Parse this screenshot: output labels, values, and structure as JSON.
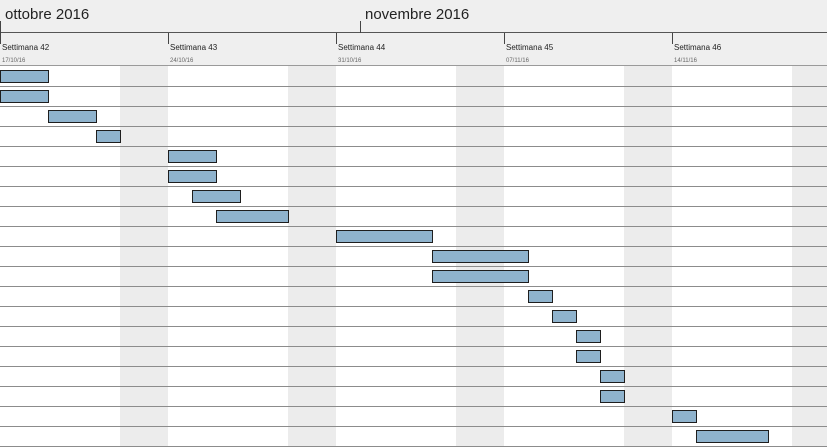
{
  "months": [
    {
      "label": "ottobre 2016",
      "start_day": 0
    },
    {
      "label": "novembre 2016",
      "start_day": 15
    }
  ],
  "weeks": [
    {
      "label": "Settimana 42",
      "date": "17/10/16",
      "start_day": 0
    },
    {
      "label": "Settimana 43",
      "date": "24/10/16",
      "start_day": 7
    },
    {
      "label": "Settimana 44",
      "date": "31/10/16",
      "start_day": 14
    },
    {
      "label": "Settimana 45",
      "date": "07/11/16",
      "start_day": 21
    },
    {
      "label": "Settimana 46",
      "date": "14/11/16",
      "start_day": 28
    }
  ],
  "tasks": [
    {
      "start": 0,
      "days": 2
    },
    {
      "start": 0,
      "days": 2
    },
    {
      "start": 2,
      "days": 2
    },
    {
      "start": 4,
      "days": 1
    },
    {
      "start": 7,
      "days": 2
    },
    {
      "start": 7,
      "days": 2
    },
    {
      "start": 8,
      "days": 2
    },
    {
      "start": 9,
      "days": 3
    },
    {
      "start": 14,
      "days": 4
    },
    {
      "start": 18,
      "days": 4
    },
    {
      "start": 18,
      "days": 4
    },
    {
      "start": 22,
      "days": 1
    },
    {
      "start": 23,
      "days": 1
    },
    {
      "start": 24,
      "days": 1
    },
    {
      "start": 24,
      "days": 1
    },
    {
      "start": 25,
      "days": 1
    },
    {
      "start": 25,
      "days": 1
    },
    {
      "start": 28,
      "days": 1
    },
    {
      "start": 29,
      "days": 3
    }
  ]
}
